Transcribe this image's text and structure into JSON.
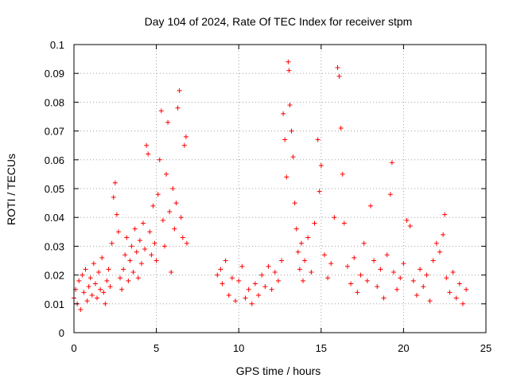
{
  "chart_data": {
    "type": "scatter",
    "title": "Day 104 of 2024, Rate Of TEC Index for receiver stpm",
    "xlabel": "GPS time / hours",
    "ylabel": "ROTI / TECUs",
    "xlim": [
      0,
      25
    ],
    "ylim": [
      0,
      0.1
    ],
    "xticks": [
      0,
      5,
      10,
      15,
      20,
      25
    ],
    "xtick_labels": [
      "0",
      "5",
      "10",
      "15",
      "20",
      "25"
    ],
    "yticks": [
      0,
      0.01,
      0.02,
      0.03,
      0.04,
      0.05,
      0.06,
      0.07,
      0.08,
      0.09,
      0.1
    ],
    "ytick_labels": [
      "0",
      "0.01",
      "0.02",
      "0.03",
      "0.04",
      "0.05",
      "0.06",
      "0.07",
      "0.08",
      "0.09",
      "0.1"
    ],
    "grid": true,
    "marker": "+",
    "color": "#ff0000",
    "data_gap_hours": [
      6.9,
      8.6
    ],
    "series": [
      {
        "name": "ROTI",
        "points": [
          [
            0.0,
            0.012
          ],
          [
            0.1,
            0.015
          ],
          [
            0.2,
            0.01
          ],
          [
            0.3,
            0.018
          ],
          [
            0.4,
            0.008
          ],
          [
            0.5,
            0.02
          ],
          [
            0.6,
            0.014
          ],
          [
            0.7,
            0.022
          ],
          [
            0.8,
            0.011
          ],
          [
            0.9,
            0.016
          ],
          [
            1.0,
            0.019
          ],
          [
            1.1,
            0.013
          ],
          [
            1.2,
            0.024
          ],
          [
            1.3,
            0.017
          ],
          [
            1.4,
            0.012
          ],
          [
            1.5,
            0.021
          ],
          [
            1.6,
            0.015
          ],
          [
            1.7,
            0.026
          ],
          [
            1.8,
            0.014
          ],
          [
            1.9,
            0.01
          ],
          [
            2.0,
            0.018
          ],
          [
            2.1,
            0.022
          ],
          [
            2.2,
            0.016
          ],
          [
            2.3,
            0.031
          ],
          [
            2.4,
            0.047
          ],
          [
            2.5,
            0.052
          ],
          [
            2.6,
            0.041
          ],
          [
            2.7,
            0.035
          ],
          [
            2.8,
            0.019
          ],
          [
            2.9,
            0.015
          ],
          [
            3.0,
            0.022
          ],
          [
            3.1,
            0.027
          ],
          [
            3.2,
            0.033
          ],
          [
            3.3,
            0.018
          ],
          [
            3.4,
            0.025
          ],
          [
            3.5,
            0.03
          ],
          [
            3.6,
            0.021
          ],
          [
            3.7,
            0.036
          ],
          [
            3.8,
            0.028
          ],
          [
            3.9,
            0.019
          ],
          [
            4.0,
            0.032
          ],
          [
            4.1,
            0.024
          ],
          [
            4.2,
            0.038
          ],
          [
            4.3,
            0.029
          ],
          [
            4.4,
            0.065
          ],
          [
            4.5,
            0.062
          ],
          [
            4.6,
            0.035
          ],
          [
            4.7,
            0.027
          ],
          [
            4.8,
            0.044
          ],
          [
            4.9,
            0.031
          ],
          [
            5.0,
            0.025
          ],
          [
            5.1,
            0.048
          ],
          [
            5.2,
            0.06
          ],
          [
            5.3,
            0.077
          ],
          [
            5.4,
            0.039
          ],
          [
            5.5,
            0.03
          ],
          [
            5.6,
            0.055
          ],
          [
            5.7,
            0.073
          ],
          [
            5.8,
            0.042
          ],
          [
            5.9,
            0.021
          ],
          [
            6.0,
            0.05
          ],
          [
            6.1,
            0.036
          ],
          [
            6.2,
            0.045
          ],
          [
            6.3,
            0.078
          ],
          [
            6.4,
            0.084
          ],
          [
            6.5,
            0.04
          ],
          [
            6.6,
            0.033
          ],
          [
            6.7,
            0.065
          ],
          [
            6.8,
            0.068
          ],
          [
            6.85,
            0.031
          ],
          [
            8.7,
            0.02
          ],
          [
            8.9,
            0.022
          ],
          [
            9.0,
            0.017
          ],
          [
            9.2,
            0.025
          ],
          [
            9.4,
            0.013
          ],
          [
            9.6,
            0.019
          ],
          [
            9.8,
            0.011
          ],
          [
            10.0,
            0.018
          ],
          [
            10.2,
            0.023
          ],
          [
            10.4,
            0.012
          ],
          [
            10.6,
            0.015
          ],
          [
            10.8,
            0.01
          ],
          [
            11.0,
            0.017
          ],
          [
            11.2,
            0.013
          ],
          [
            11.4,
            0.02
          ],
          [
            11.6,
            0.016
          ],
          [
            11.8,
            0.023
          ],
          [
            12.0,
            0.015
          ],
          [
            12.2,
            0.021
          ],
          [
            12.4,
            0.018
          ],
          [
            12.6,
            0.025
          ],
          [
            12.7,
            0.076
          ],
          [
            12.8,
            0.067
          ],
          [
            12.9,
            0.054
          ],
          [
            13.0,
            0.094
          ],
          [
            13.05,
            0.091
          ],
          [
            13.1,
            0.079
          ],
          [
            13.2,
            0.07
          ],
          [
            13.3,
            0.061
          ],
          [
            13.4,
            0.045
          ],
          [
            13.5,
            0.036
          ],
          [
            13.6,
            0.028
          ],
          [
            13.7,
            0.022
          ],
          [
            13.8,
            0.031
          ],
          [
            13.9,
            0.018
          ],
          [
            14.0,
            0.025
          ],
          [
            14.2,
            0.033
          ],
          [
            14.4,
            0.021
          ],
          [
            14.6,
            0.038
          ],
          [
            14.8,
            0.067
          ],
          [
            14.9,
            0.049
          ],
          [
            15.0,
            0.058
          ],
          [
            15.2,
            0.027
          ],
          [
            15.4,
            0.019
          ],
          [
            15.6,
            0.024
          ],
          [
            15.8,
            0.04
          ],
          [
            16.0,
            0.092
          ],
          [
            16.1,
            0.089
          ],
          [
            16.2,
            0.071
          ],
          [
            16.3,
            0.055
          ],
          [
            16.4,
            0.038
          ],
          [
            16.6,
            0.023
          ],
          [
            16.8,
            0.017
          ],
          [
            17.0,
            0.026
          ],
          [
            17.2,
            0.014
          ],
          [
            17.4,
            0.02
          ],
          [
            17.6,
            0.031
          ],
          [
            17.8,
            0.018
          ],
          [
            18.0,
            0.044
          ],
          [
            18.2,
            0.025
          ],
          [
            18.4,
            0.016
          ],
          [
            18.6,
            0.022
          ],
          [
            18.8,
            0.012
          ],
          [
            19.0,
            0.027
          ],
          [
            19.2,
            0.048
          ],
          [
            19.3,
            0.059
          ],
          [
            19.4,
            0.021
          ],
          [
            19.6,
            0.015
          ],
          [
            19.8,
            0.019
          ],
          [
            20.0,
            0.024
          ],
          [
            20.2,
            0.039
          ],
          [
            20.4,
            0.037
          ],
          [
            20.6,
            0.018
          ],
          [
            20.8,
            0.013
          ],
          [
            21.0,
            0.022
          ],
          [
            21.2,
            0.016
          ],
          [
            21.4,
            0.02
          ],
          [
            21.6,
            0.011
          ],
          [
            21.8,
            0.025
          ],
          [
            22.0,
            0.031
          ],
          [
            22.2,
            0.028
          ],
          [
            22.4,
            0.034
          ],
          [
            22.5,
            0.041
          ],
          [
            22.6,
            0.019
          ],
          [
            22.8,
            0.014
          ],
          [
            23.0,
            0.021
          ],
          [
            23.2,
            0.012
          ],
          [
            23.4,
            0.017
          ],
          [
            23.6,
            0.01
          ],
          [
            23.8,
            0.015
          ]
        ]
      }
    ]
  }
}
